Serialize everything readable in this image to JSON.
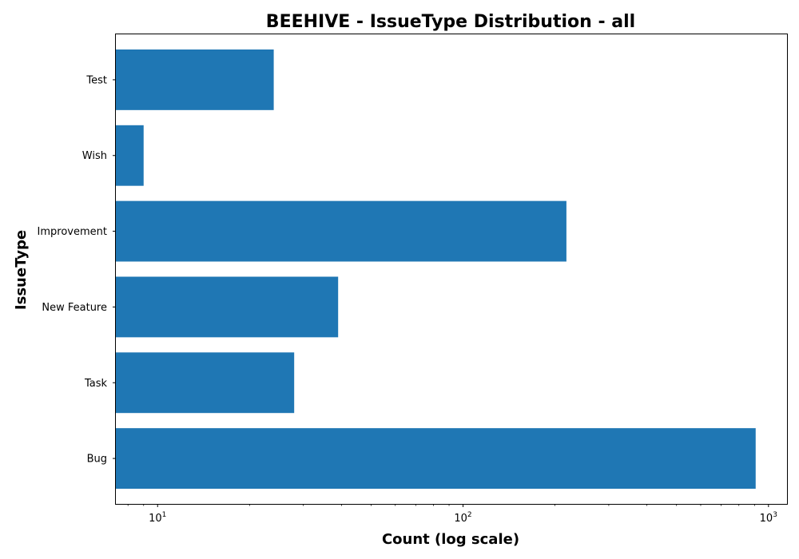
{
  "chart_data": {
    "type": "bar",
    "orientation": "horizontal",
    "title": "BEEHIVE - IssueType Distribution - all",
    "xlabel": "Count (log scale)",
    "ylabel": "IssueType",
    "x_scale": "log",
    "xlim": [
      7.3,
      1150
    ],
    "x_ticks": [
      {
        "value": 10,
        "base": "10",
        "exp": "1"
      },
      {
        "value": 100,
        "base": "10",
        "exp": "2"
      },
      {
        "value": 1000,
        "base": "10",
        "exp": "3"
      }
    ],
    "categories": [
      "Bug",
      "Task",
      "New Feature",
      "Improvement",
      "Wish",
      "Test"
    ],
    "values": [
      908,
      28,
      39,
      218,
      9,
      24
    ],
    "bar_color": "#1f77b4",
    "grid": false,
    "legend": "none"
  }
}
